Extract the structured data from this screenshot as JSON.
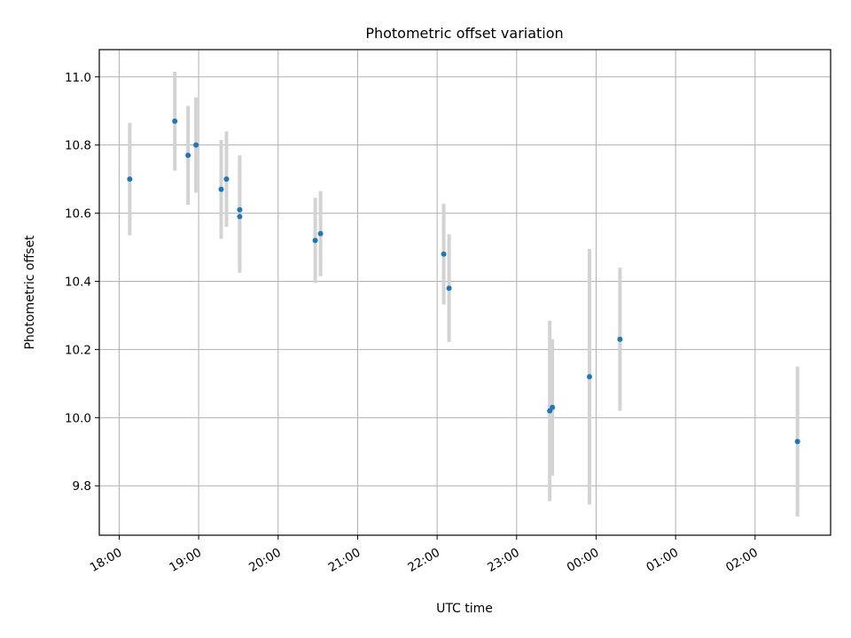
{
  "chart_data": {
    "type": "scatter",
    "title": "Photometric offset variation",
    "xlabel": "UTC time",
    "ylabel": "Photometric offset",
    "grid": true,
    "x_tick_labels": [
      "18:00",
      "19:00",
      "20:00",
      "21:00",
      "22:00",
      "23:00",
      "00:00",
      "01:00",
      "02:00"
    ],
    "x_tick_hours": [
      18,
      19,
      20,
      21,
      22,
      23,
      24,
      25,
      26
    ],
    "xlim_hours": [
      17.75,
      26.95
    ],
    "y_ticks": [
      9.8,
      10.0,
      10.2,
      10.4,
      10.6,
      10.8,
      11.0
    ],
    "y_tick_labels": [
      "9.8",
      "10.0",
      "10.2",
      "10.4",
      "10.6",
      "10.8",
      "11.0"
    ],
    "ylim": [
      9.655,
      11.08
    ],
    "x_time_unit": "hours since 18:00 UTC",
    "points": [
      {
        "time": "18:08",
        "y": 10.7,
        "err": 0.165
      },
      {
        "time": "18:42",
        "y": 10.87,
        "err": 0.145
      },
      {
        "time": "18:52",
        "y": 10.77,
        "err": 0.145
      },
      {
        "time": "18:58",
        "y": 10.8,
        "err": 0.14
      },
      {
        "time": "19:17",
        "y": 10.67,
        "err": 0.145
      },
      {
        "time": "19:21",
        "y": 10.7,
        "err": 0.14
      },
      {
        "time": "19:31",
        "y": 10.61,
        "err": 0.16
      },
      {
        "time": "19:31",
        "y": 10.59,
        "err": 0.165
      },
      {
        "time": "20:28",
        "y": 10.52,
        "err": 0.125
      },
      {
        "time": "20:32",
        "y": 10.54,
        "err": 0.125
      },
      {
        "time": "22:05",
        "y": 10.48,
        "err": 0.148
      },
      {
        "time": "22:09",
        "y": 10.38,
        "err": 0.158
      },
      {
        "time": "23:25",
        "y": 10.02,
        "err": 0.265
      },
      {
        "time": "23:27",
        "y": 10.03,
        "err": 0.2
      },
      {
        "time": "23:55",
        "y": 10.12,
        "err": 0.375
      },
      {
        "time": "00:18",
        "y": 10.23,
        "err": 0.21
      },
      {
        "time": "02:32",
        "y": 9.93,
        "err": 0.22
      }
    ],
    "point_color": "#1f77b4",
    "errorbar_color": "#d3d3d3"
  }
}
